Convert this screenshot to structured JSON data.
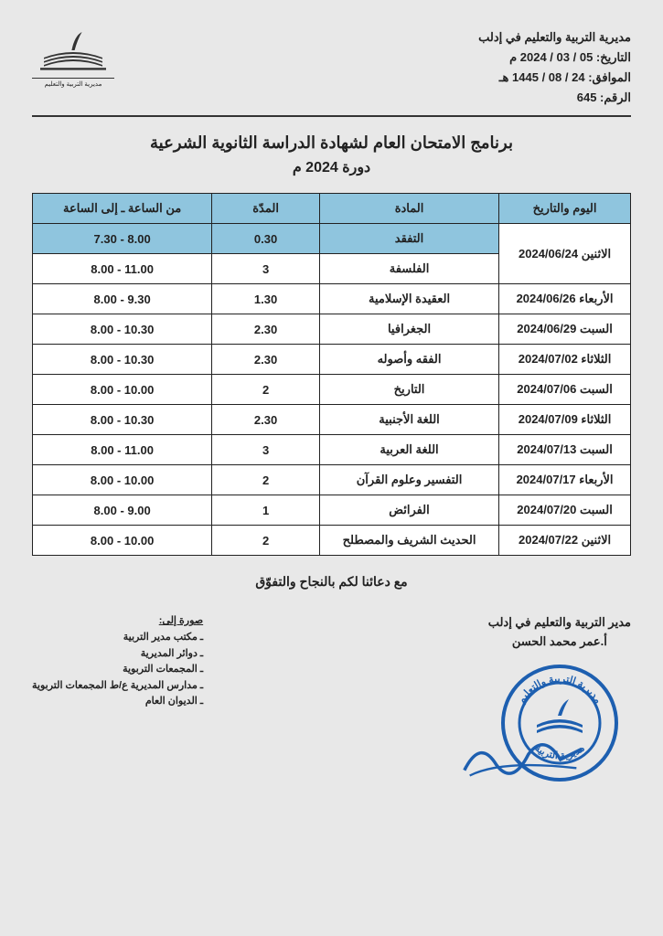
{
  "header": {
    "org": "مديرية التربية والتعليم في إدلب",
    "date_g": "التاريخ: 05 / 03 / 2024 م",
    "date_h": "الموافق: 24 / 08 / 1445 هـ",
    "number": "الرقم:   645"
  },
  "title": "برنامج الامتحان العام لشهادة الدراسة الثانوية الشرعية",
  "subtitle": "دورة 2024 م",
  "table": {
    "headers": {
      "date": "اليوم والتاريخ",
      "subject": "المادة",
      "duration": "المدّة",
      "time": "من الساعة ـ إلى الساعة"
    },
    "header_bg": "#8fc5de",
    "rows": [
      {
        "date": "الاثنين 2024/06/24",
        "rowspan": 2,
        "subject": "التفقد",
        "duration": "0.30",
        "time": "8.00 - 7.30",
        "highlight": true
      },
      {
        "subject": "الفلسفة",
        "duration": "3",
        "time": "11.00 - 8.00"
      },
      {
        "date": "الأربعاء 2024/06/26",
        "subject": "العقيدة الإسلامية",
        "duration": "1.30",
        "time": "9.30 - 8.00"
      },
      {
        "date": "السبت 2024/06/29",
        "subject": "الجغرافيا",
        "duration": "2.30",
        "time": "10.30 - 8.00"
      },
      {
        "date": "الثلاثاء 2024/07/02",
        "subject": "الفقه وأصوله",
        "duration": "2.30",
        "time": "10.30 - 8.00"
      },
      {
        "date": "السبت 2024/07/06",
        "subject": "التاريخ",
        "duration": "2",
        "time": "10.00 - 8.00"
      },
      {
        "date": "الثلاثاء 2024/07/09",
        "subject": "اللغة الأجنبية",
        "duration": "2.30",
        "time": "10.30 - 8.00"
      },
      {
        "date": "السبت 2024/07/13",
        "subject": "اللغة العربية",
        "duration": "3",
        "time": "11.00 - 8.00"
      },
      {
        "date": "الأربعاء 2024/07/17",
        "subject": "التفسير وعلوم القرآن",
        "duration": "2",
        "time": "10.00 - 8.00"
      },
      {
        "date": "السبت 2024/07/20",
        "subject": "الفرائض",
        "duration": "1",
        "time": "9.00 - 8.00"
      },
      {
        "date": "الاثنين 2024/07/22",
        "subject": "الحديث الشريف والمصطلح",
        "duration": "2",
        "time": "10.00 - 8.00"
      }
    ]
  },
  "wishes": "مع دعائنا لكم بالنجاح والتفوّق",
  "signature": {
    "title": "مدير التربية والتعليم في إدلب",
    "name": "أ.عمر محمد الحسن"
  },
  "stamp_color": "#1d5fb0",
  "cc": {
    "title": "صورة إلى:",
    "lines": [
      "ـ مكتب مدير التربية",
      "ـ دوائر المديرية",
      "ـ المجمعات التربوية",
      "ـ مدارس المديرية ع/ط المجمعات التربوية",
      "ـ الديوان العام"
    ]
  }
}
